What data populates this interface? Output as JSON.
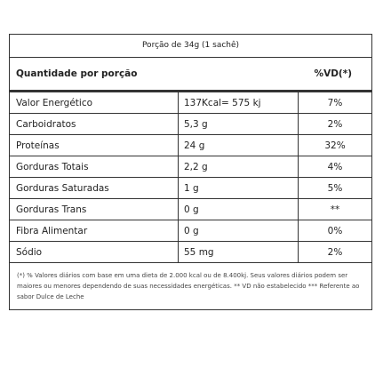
{
  "header": {
    "serving": "Porção de 34g (1 sachê)"
  },
  "table": {
    "header": [
      "Quantidade por porção",
      "%VD(*)"
    ],
    "rows": [
      [
        "Valor Energético",
        "137Kcal= 575 kj",
        "7%"
      ],
      [
        "Carboidratos",
        "5,3 g",
        "2%"
      ],
      [
        "Proteínas",
        "24 g",
        "32%"
      ],
      [
        "Gorduras Totais",
        "2,2 g",
        "4%"
      ],
      [
        "Gorduras Saturadas",
        "1 g",
        "5%"
      ],
      [
        "Gorduras Trans",
        "0 g",
        "**"
      ],
      [
        "Fibra Alimentar",
        "0 g",
        "0%"
      ],
      [
        "Sódio",
        "55 mg",
        "2%"
      ]
    ]
  },
  "footnote": "(*) % Valores diários com base em uma dieta de 2.000 kcal ou de 8.400kj. Seus valores diários podem ser maiores ou menores dependendo de suas necessidades energéticas. ** VD não estabelecido *** Referente ao sabor Dulce de Leche"
}
